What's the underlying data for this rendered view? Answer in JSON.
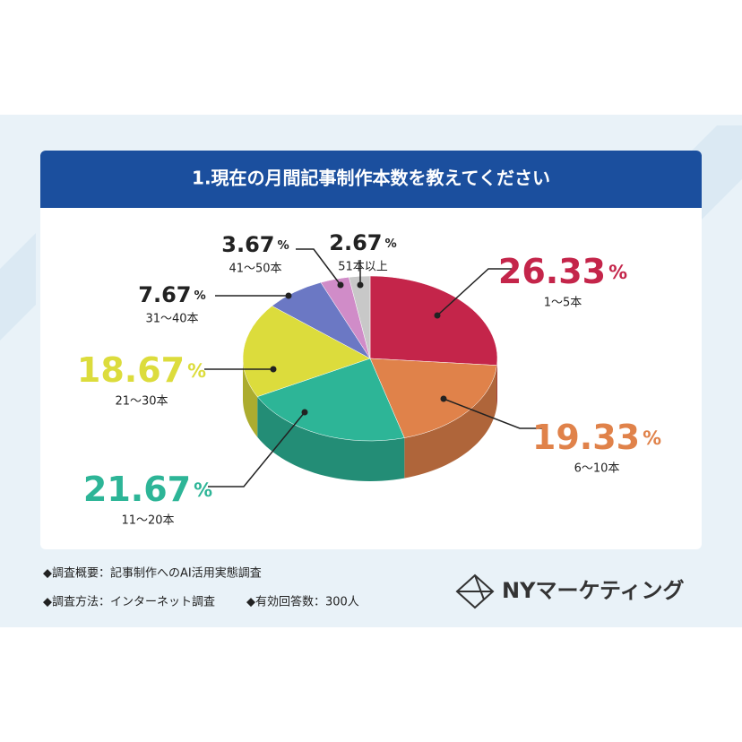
{
  "chart_data": {
    "type": "pie",
    "title": "1.現在の月間記事制作本数を教えてください",
    "categories": [
      "1〜5本",
      "6〜10本",
      "11〜20本",
      "21〜30本",
      "31〜40本",
      "41〜50本",
      "51本以上"
    ],
    "values": [
      26.33,
      19.33,
      21.67,
      18.67,
      7.67,
      3.67,
      2.67
    ],
    "value_labels": [
      "26.33%",
      "19.33%",
      "21.67%",
      "18.67%",
      "7.67%",
      "3.67%",
      "2.67%"
    ],
    "colors": [
      "#c4254a",
      "#e0824a",
      "#2db597",
      "#dcdc3c",
      "#6b78c4",
      "#d08cc8",
      "#c8c8c8"
    ]
  },
  "footer": {
    "survey_summary": "◆調査概要：記事制作へのAI活用実態調査",
    "survey_method": "◆調査方法：インターネット調査",
    "respondents": "◆有効回答数：300人",
    "logo": "NYマーケティング"
  }
}
